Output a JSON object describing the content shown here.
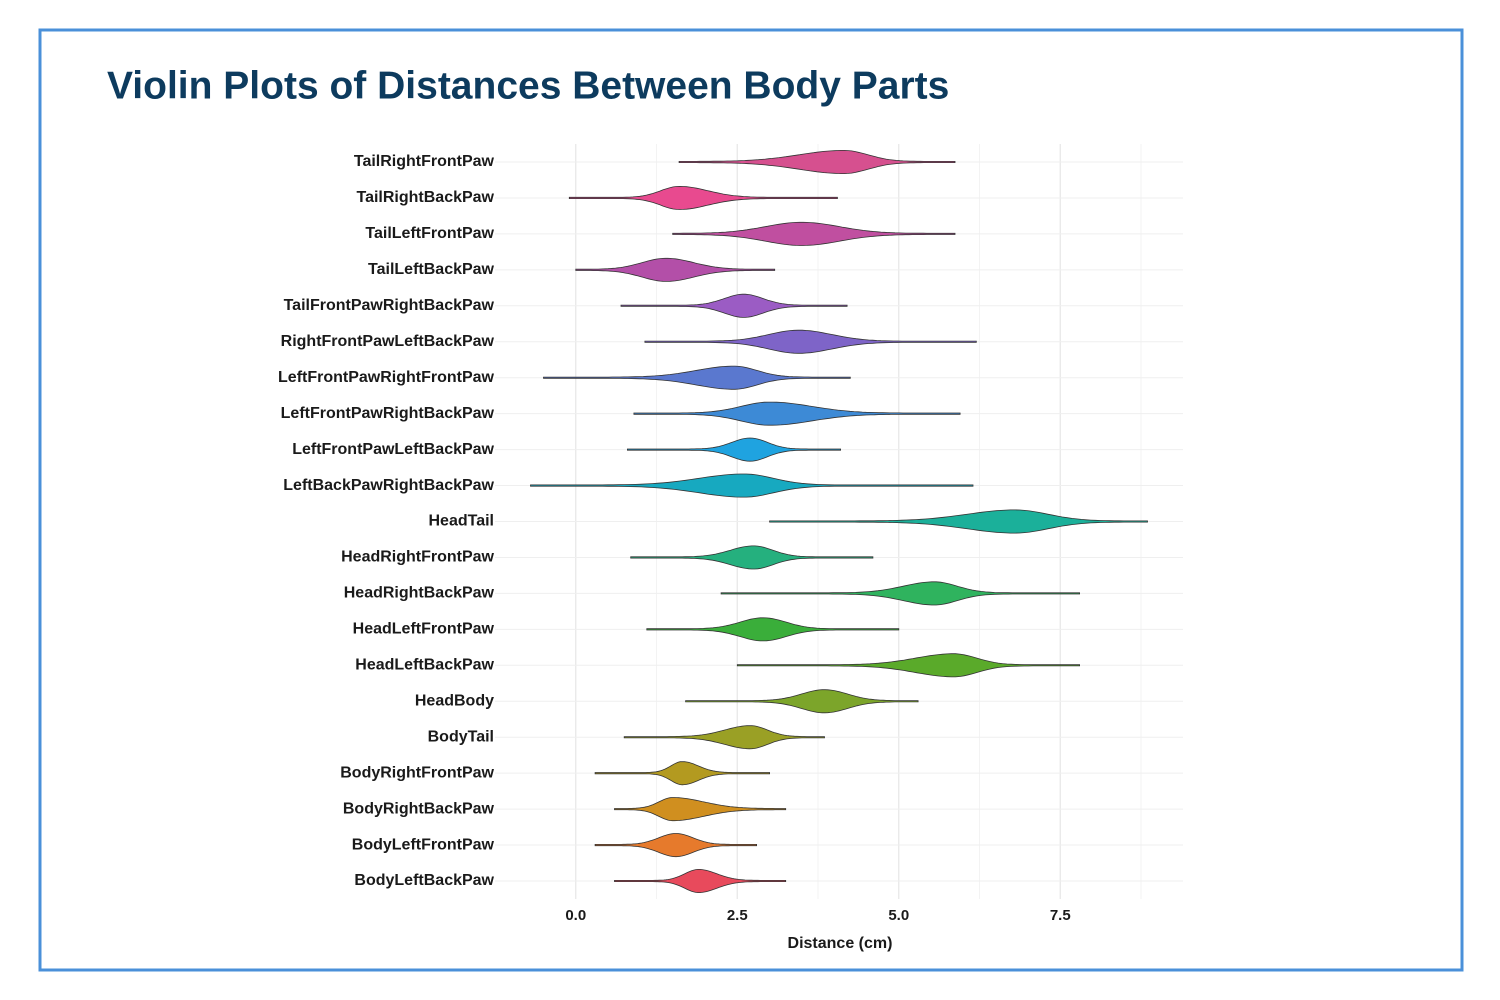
{
  "chart_data": {
    "type": "violin",
    "title": "Violin Plots of Distances Between Body Parts",
    "x_label": "Distance (cm)",
    "categories": [
      "TailRightFrontPaw",
      "TailRightBackPaw",
      "TailLeftFrontPaw",
      "TailLeftBackPaw",
      "TailFrontPawRightBackPaw",
      "RightFrontPawLeftBackPaw",
      "LeftFrontPawRightFrontPaw",
      "LeftFrontPawRightBackPaw",
      "LeftFrontPawLeftBackPaw",
      "LeftBackPawRightBackPaw",
      "HeadTail",
      "HeadRightFrontPaw",
      "HeadRightBackPaw",
      "HeadLeftFrontPaw",
      "HeadLeftBackPaw",
      "HeadBody",
      "BodyTail",
      "BodyRightFrontPaw",
      "BodyRightBackPaw",
      "BodyLeftFrontPaw",
      "BodyLeftBackPaw"
    ],
    "values": [
      {
        "min": 1.6,
        "peak": 4.15,
        "max": 5.87,
        "body": [
          2.2,
          5.2
        ]
      },
      {
        "min": -0.1,
        "peak": 1.6,
        "max": 4.05,
        "body": [
          0.8,
          2.85
        ]
      },
      {
        "min": 1.5,
        "peak": 3.5,
        "max": 5.87,
        "body": [
          1.9,
          5.15
        ]
      },
      {
        "min": 0,
        "peak": 1.4,
        "max": 3.08,
        "body": [
          0.35,
          2.6
        ]
      },
      {
        "min": 0.7,
        "peak": 2.6,
        "max": 4.2,
        "body": [
          1.75,
          3.45
        ]
      },
      {
        "min": 1.07,
        "peak": 3.45,
        "max": 6.2,
        "body": [
          2.15,
          4.9
        ]
      },
      {
        "min": -0.5,
        "peak": 2.45,
        "max": 4.25,
        "body": [
          0.8,
          3.45
        ]
      },
      {
        "min": 0.9,
        "peak": 3.0,
        "max": 5.95,
        "body": [
          1.75,
          4.85
        ]
      },
      {
        "min": 0.8,
        "peak": 2.7,
        "max": 4.1,
        "body": [
          1.9,
          3.45
        ]
      },
      {
        "min": -0.7,
        "peak": 2.6,
        "max": 6.15,
        "body": [
          0.65,
          3.9
        ]
      },
      {
        "min": 3.0,
        "peak": 6.8,
        "max": 8.85,
        "body": [
          4.7,
          8.25
        ]
      },
      {
        "min": 0.85,
        "peak": 2.75,
        "max": 4.6,
        "body": [
          1.75,
          3.6
        ]
      },
      {
        "min": 2.25,
        "peak": 5.55,
        "max": 7.8,
        "body": [
          4.2,
          6.55
        ]
      },
      {
        "min": 1.1,
        "peak": 2.9,
        "max": 5.0,
        "body": [
          1.9,
          3.9
        ]
      },
      {
        "min": 2.5,
        "peak": 5.85,
        "max": 7.8,
        "body": [
          4.2,
          6.85
        ]
      },
      {
        "min": 1.7,
        "peak": 3.85,
        "max": 5.3,
        "body": [
          2.85,
          4.85
        ]
      },
      {
        "min": 0.75,
        "peak": 2.7,
        "max": 3.85,
        "body": [
          1.6,
          3.45
        ]
      },
      {
        "min": 0.3,
        "peak": 1.65,
        "max": 3.0,
        "body": [
          1.15,
          2.35
        ]
      },
      {
        "min": 0.6,
        "peak": 1.5,
        "max": 3.25,
        "body": [
          0.9,
          2.85
        ]
      },
      {
        "min": 0.3,
        "peak": 1.55,
        "max": 2.8,
        "body": [
          0.8,
          2.3
        ]
      },
      {
        "min": 0.6,
        "peak": 1.9,
        "max": 3.25,
        "body": [
          1.3,
          2.7
        ]
      }
    ],
    "colors": [
      "#d6508f",
      "#e84a8f",
      "#c04fa0",
      "#b34fa8",
      "#9b5cc4",
      "#7e64c8",
      "#5a78cf",
      "#3d8ad6",
      "#1fa3e0",
      "#17a9c0",
      "#1bb09a",
      "#25b07e",
      "#2fb35e",
      "#3aae3a",
      "#5aaa2a",
      "#7ca52a",
      "#9aa025",
      "#b39a20",
      "#d08f1f",
      "#e67a2c",
      "#e84a5c"
    ],
    "xlim": [
      -1.25,
      9.4
    ],
    "xticks": [
      {
        "value": 0,
        "label": "0.0"
      },
      2.5,
      {
        "value": 5,
        "label": "5.0"
      },
      7.5
    ],
    "minor_xticks": [
      1.25,
      3.75,
      6.25,
      8.75
    ],
    "grid": true
  }
}
